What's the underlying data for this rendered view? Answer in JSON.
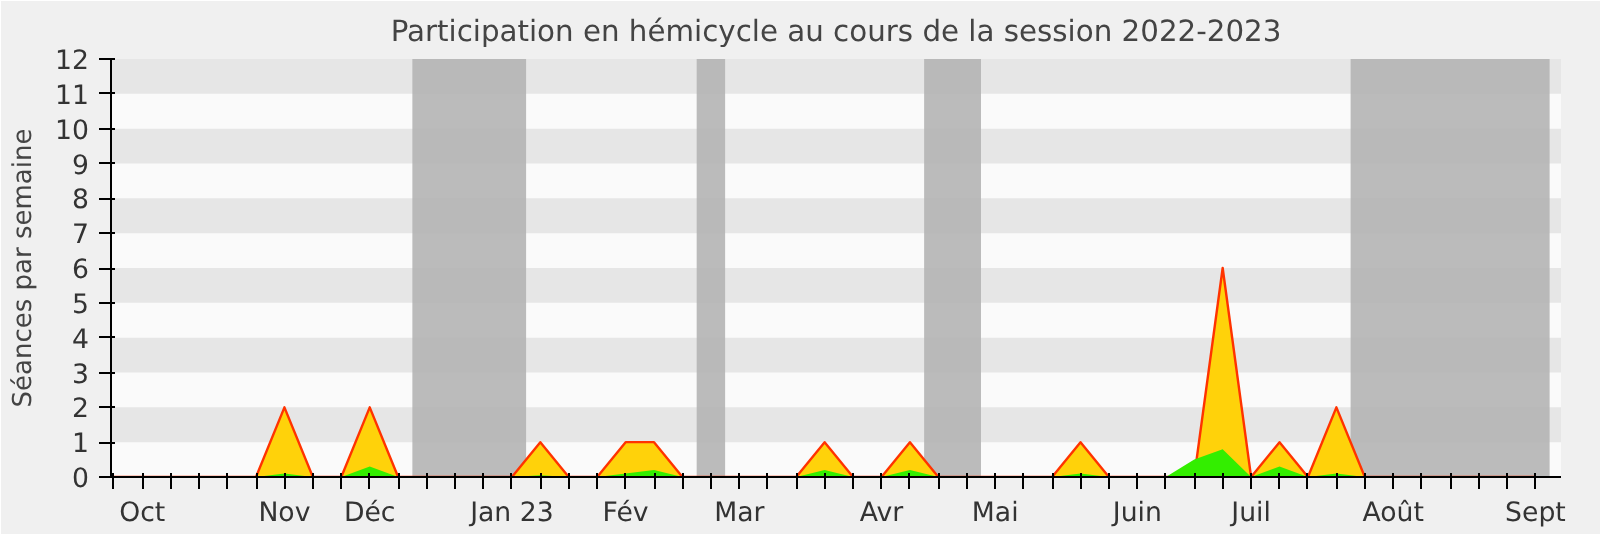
{
  "chart_data": {
    "type": "area",
    "title": "Participation en hémicycle au cours de la session 2022-2023",
    "ylabel": "Séances par semaine",
    "categories": [
      null,
      "Oct",
      null,
      null,
      null,
      null,
      "Nov",
      null,
      null,
      "Déc",
      null,
      null,
      null,
      null,
      "Jan 23",
      null,
      null,
      null,
      "Fév",
      null,
      null,
      null,
      "Mar",
      null,
      null,
      null,
      null,
      "Avr",
      null,
      null,
      null,
      "Mai",
      null,
      null,
      null,
      null,
      "Juin",
      null,
      null,
      null,
      "Juil",
      null,
      null,
      null,
      null,
      "Août",
      null,
      null,
      null,
      null,
      "Sept"
    ],
    "series": [
      {
        "color": "#ffd20a",
        "values": [
          0,
          0,
          0,
          0,
          0,
          0,
          2,
          0,
          0,
          2,
          0,
          0,
          0,
          0,
          0,
          1,
          0,
          0,
          1,
          1,
          0,
          0,
          0,
          0,
          0,
          1,
          0,
          0,
          1,
          0,
          0,
          0,
          0,
          0,
          1,
          0,
          0,
          0,
          0,
          6,
          0,
          1,
          0,
          2,
          0,
          0,
          0,
          0,
          0,
          0,
          0
        ]
      },
      {
        "color": "#33ee00",
        "values": [
          0,
          0,
          0,
          0,
          0,
          0,
          0.1,
          0,
          0,
          0.3,
          0,
          0,
          0,
          0,
          0,
          0.05,
          0,
          0,
          0.1,
          0.2,
          0,
          0,
          0,
          0,
          0,
          0.2,
          0,
          0,
          0.2,
          0,
          0,
          0,
          0,
          0,
          0.1,
          0,
          0,
          0,
          0.5,
          0.8,
          0,
          0.3,
          0,
          0.1,
          0,
          0,
          0,
          0,
          0,
          0,
          0
        ]
      }
    ],
    "ylim": [
      0,
      12
    ],
    "yticks": [
      0,
      1,
      2,
      3,
      4,
      5,
      6,
      7,
      8,
      9,
      10,
      11,
      12
    ]
  }
}
